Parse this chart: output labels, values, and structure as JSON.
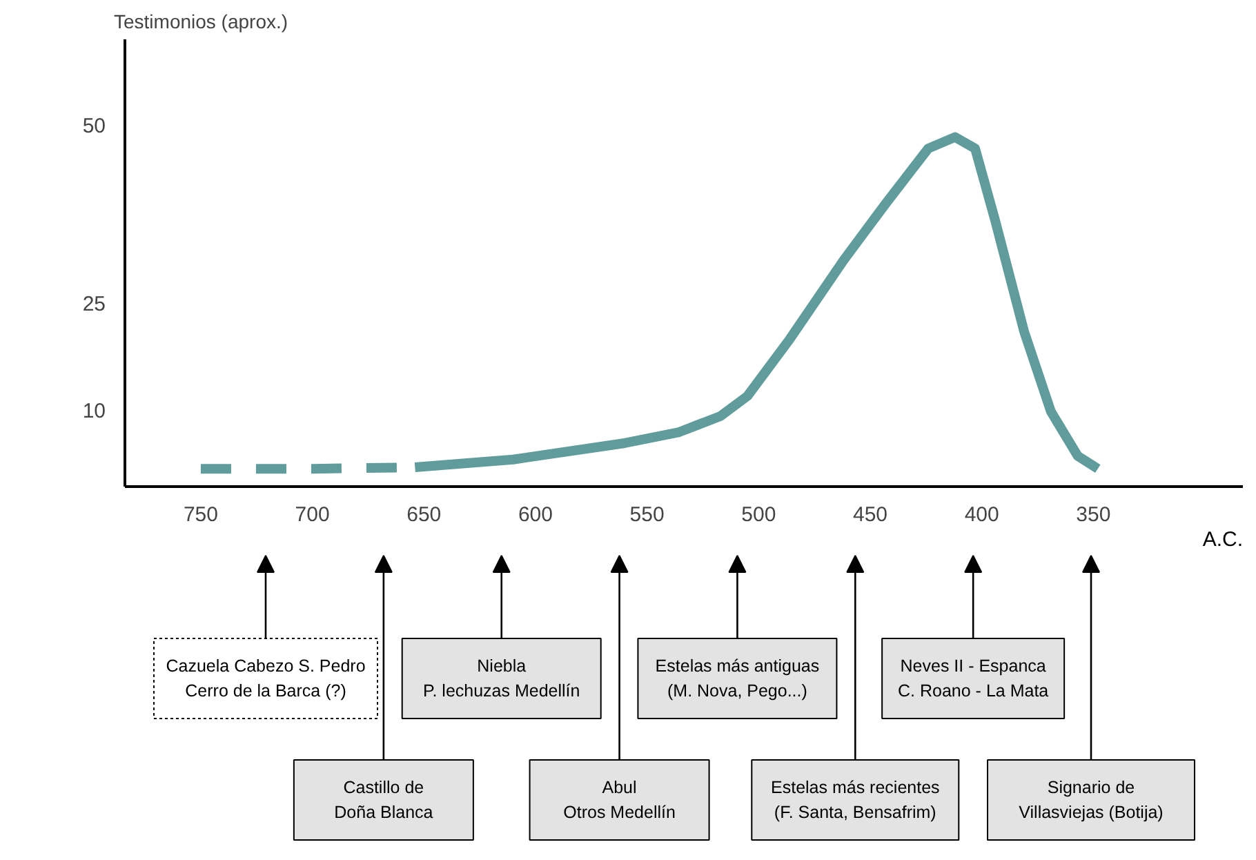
{
  "chart_data": {
    "type": "line",
    "ylabel": "Testimonios (aprox.)",
    "xlabel": "A.C.",
    "xlim": [
      784,
      283
    ],
    "ylim": [
      -0.7,
      62
    ],
    "xticks": [
      750,
      700,
      650,
      600,
      550,
      500,
      450,
      400,
      350
    ],
    "yticks": [
      10,
      25,
      50
    ],
    "grid": false,
    "marker": "none",
    "series": [
      {
        "color": "#5f9c9b",
        "line_style": "dashed",
        "x": [
          750,
          700,
          654
        ],
        "values": [
          1.8,
          1.8,
          2
        ]
      },
      {
        "color": "#5f9c9b",
        "line_style": "solid",
        "x": [
          654,
          610,
          560,
          536,
          517,
          505,
          486,
          462,
          443,
          424,
          412,
          403,
          394,
          381,
          369,
          357,
          348
        ],
        "values": [
          2,
          3.1,
          5.4,
          6.9,
          9.2,
          12,
          20,
          31,
          39,
          46.7,
          48.3,
          46.7,
          36.6,
          21,
          9.8,
          3.6,
          1.8
        ]
      }
    ],
    "annotations": [
      "Cazuela Cabezo S. Pedro\nCerro de la Barca (?)",
      "Castillo de\nDoña Blanca",
      "Niebla\nP. lechuzas Medellín",
      "Abul\nOtros Medellín",
      "Estelas más antiguas\n(M. Nova, Pego...)",
      "Estelas más recientes\n(F. Santa, Bensafrim)",
      "Neves II - Espanca\nC. Roano - La Mata",
      "Signario de\nVillasviejas (Botija)"
    ]
  }
}
